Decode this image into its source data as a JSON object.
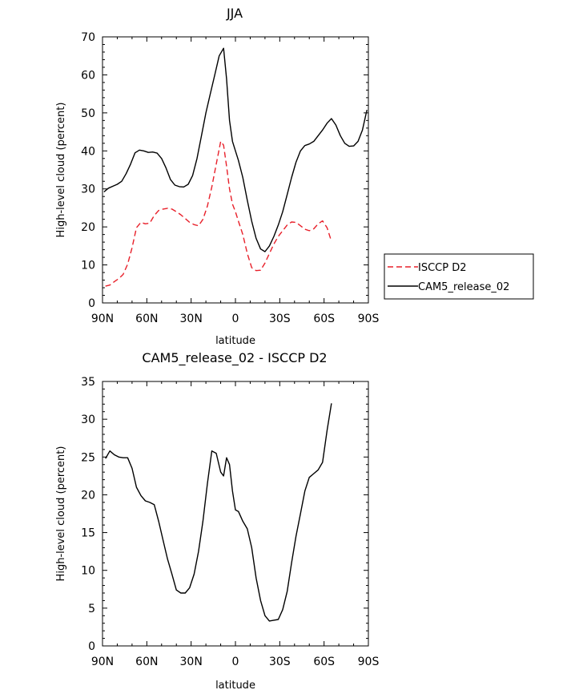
{
  "chart_data": [
    {
      "type": "line",
      "title": "JJA",
      "xlabel": "latitude",
      "ylabel": "High-level cloud (percent)",
      "xlim": [
        90,
        -90
      ],
      "ylim": [
        0,
        70
      ],
      "x_ticks": [
        90,
        60,
        30,
        0,
        -30,
        -60,
        -90
      ],
      "x_tick_labels": [
        "90N",
        "60N",
        "30N",
        "0",
        "30S",
        "60S",
        "90S"
      ],
      "y_ticks": [
        0,
        10,
        20,
        30,
        40,
        50,
        60,
        70
      ],
      "y_tick_labels": [
        "0",
        "10",
        "20",
        "30",
        "40",
        "50",
        "60",
        "70"
      ],
      "legend_position": "right",
      "series": [
        {
          "name": "ISCCP D2",
          "color": "#e8202a",
          "dash": "dashed",
          "x": [
            88,
            85,
            82,
            79,
            76,
            73,
            70,
            67,
            64,
            61,
            58,
            55,
            52,
            49,
            46,
            43,
            40,
            37,
            34,
            31,
            28,
            25,
            22,
            19,
            16,
            13,
            10,
            8,
            6,
            4,
            2,
            0,
            -2,
            -5,
            -8,
            -11,
            -14,
            -17,
            -20,
            -23,
            -26,
            -29,
            -32,
            -35,
            -38,
            -41,
            -44,
            -47,
            -50,
            -53,
            -56,
            -59,
            -62,
            -65
          ],
          "y": [
            4.4,
            4.7,
            5.6,
            6.4,
            7.5,
            10.2,
            14.5,
            19.8,
            21.2,
            20.8,
            21.0,
            23.0,
            24.3,
            24.7,
            24.9,
            24.7,
            24.0,
            23.2,
            22.2,
            21.2,
            20.6,
            20.3,
            22.0,
            25.5,
            30.5,
            36.5,
            42.5,
            41.5,
            36.0,
            30.0,
            26.0,
            24.0,
            21.5,
            18.0,
            13.0,
            9.3,
            8.5,
            8.6,
            10.5,
            13.0,
            15.5,
            17.5,
            19.0,
            20.5,
            21.3,
            21.2,
            20.3,
            19.4,
            19.0,
            19.5,
            20.8,
            21.6,
            19.8,
            16.2
          ]
        },
        {
          "name": "CAM5_release_02",
          "color": "#000000",
          "dash": "solid",
          "x": [
            89,
            86,
            83,
            80,
            77,
            74,
            71,
            68,
            65,
            62,
            59,
            56,
            53,
            50,
            47,
            44,
            41,
            38,
            35,
            32,
            29,
            26,
            23,
            20,
            17,
            14,
            11,
            8,
            6,
            4,
            2,
            0,
            -2,
            -5,
            -8,
            -11,
            -14,
            -17,
            -20,
            -23,
            -26,
            -29,
            -32,
            -35,
            -38,
            -41,
            -44,
            -47,
            -50,
            -53,
            -56,
            -59,
            -62,
            -65,
            -68,
            -71,
            -74,
            -77,
            -80,
            -83,
            -86,
            -89
          ],
          "y": [
            29.2,
            30.2,
            30.7,
            31.2,
            32.0,
            34.0,
            36.5,
            39.5,
            40.2,
            40.0,
            39.6,
            39.7,
            39.4,
            38.0,
            35.5,
            32.5,
            31.0,
            30.6,
            30.5,
            31.2,
            33.5,
            38.0,
            44.0,
            50.0,
            55.0,
            60.0,
            65.0,
            67.0,
            59.0,
            48.0,
            42.5,
            40.0,
            37.5,
            33.0,
            27.0,
            21.5,
            17.0,
            14.2,
            13.5,
            15.0,
            17.5,
            20.5,
            24.0,
            28.5,
            33.0,
            37.0,
            40.0,
            41.4,
            41.8,
            42.5,
            44.0,
            45.5,
            47.3,
            48.5,
            46.8,
            44.0,
            42.0,
            41.2,
            41.3,
            42.5,
            45.5,
            50.8
          ]
        }
      ]
    },
    {
      "type": "line",
      "title": "CAM5_release_02 - ISCCP D2",
      "xlabel": "latitude",
      "ylabel": "High-level cloud (percent)",
      "xlim": [
        90,
        -90
      ],
      "ylim": [
        0,
        35
      ],
      "x_ticks": [
        90,
        60,
        30,
        0,
        -30,
        -60,
        -90
      ],
      "x_tick_labels": [
        "90N",
        "60N",
        "30N",
        "0",
        "30S",
        "60S",
        "90S"
      ],
      "y_ticks": [
        0,
        5,
        10,
        15,
        20,
        25,
        30,
        35
      ],
      "y_tick_labels": [
        "0",
        "5",
        "10",
        "15",
        "20",
        "25",
        "30",
        "35"
      ],
      "series": [
        {
          "color": "#000000",
          "dash": "solid",
          "x": [
            88,
            85,
            82,
            79,
            76,
            73,
            70,
            67,
            64,
            61,
            58,
            55,
            52,
            49,
            46,
            43,
            40,
            37,
            34,
            31,
            28,
            25,
            22,
            19,
            16,
            13,
            10,
            8,
            6,
            4,
            2,
            0,
            -2,
            -5,
            -8,
            -11,
            -14,
            -17,
            -20,
            -23,
            -26,
            -29,
            -32,
            -35,
            -38,
            -41,
            -44,
            -47,
            -50,
            -53,
            -56,
            -59,
            -62,
            -65
          ],
          "y": [
            24.8,
            25.8,
            25.3,
            25.0,
            24.9,
            24.9,
            23.5,
            21.0,
            19.9,
            19.2,
            19.0,
            18.7,
            16.5,
            14.0,
            11.5,
            9.5,
            7.4,
            7.0,
            7.0,
            7.7,
            9.5,
            12.5,
            16.5,
            21.5,
            25.8,
            25.5,
            23.0,
            22.5,
            24.9,
            24.0,
            20.5,
            18.0,
            17.8,
            16.5,
            15.5,
            13.0,
            9.0,
            6.0,
            4.0,
            3.3,
            3.4,
            3.5,
            4.8,
            7.2,
            11.0,
            14.5,
            17.5,
            20.5,
            22.3,
            22.8,
            23.3,
            24.3,
            28.5,
            32.1
          ]
        }
      ]
    }
  ]
}
